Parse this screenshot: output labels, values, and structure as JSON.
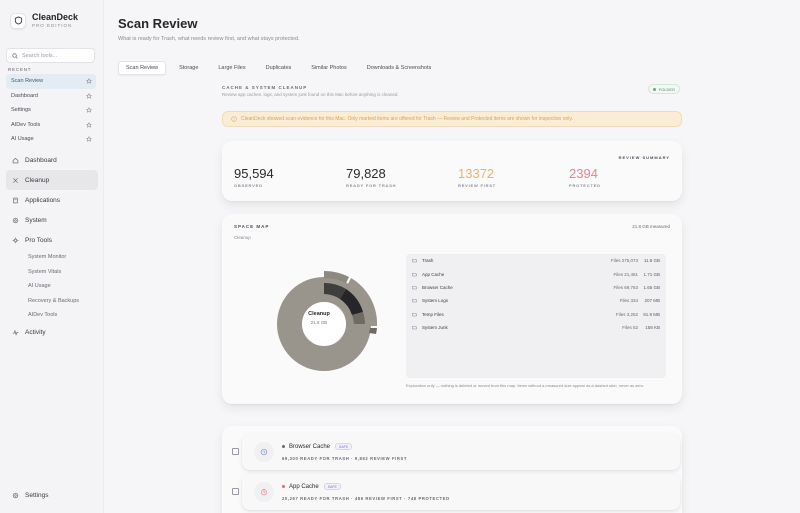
{
  "brand": {
    "name": "CleanDeck",
    "edition": "PRO EDITION"
  },
  "search": {
    "placeholder": "Search tools..."
  },
  "recent": {
    "label": "RECENT",
    "items": [
      {
        "label": "Scan Review"
      },
      {
        "label": "Dashboard"
      },
      {
        "label": "Settings"
      },
      {
        "label": "AIDev Tools"
      },
      {
        "label": "AI Usage"
      }
    ]
  },
  "nav": {
    "items": [
      {
        "label": "Dashboard",
        "icon": "home-icon"
      },
      {
        "label": "Cleanup",
        "icon": "sparkle-icon"
      },
      {
        "label": "Applications",
        "icon": "app-icon"
      },
      {
        "label": "System",
        "icon": "gear-icon"
      },
      {
        "label": "Pro Tools",
        "icon": "settings-icon"
      }
    ],
    "pro_tools": [
      "System Monitor",
      "System Vitals",
      "AI Usage",
      "Recovery & Backups",
      "AIDev Tools"
    ],
    "activity": "Activity",
    "settings": "Settings"
  },
  "page": {
    "title": "Scan Review",
    "subtitle": "What is ready for Trash, what needs review first, and what stays protected."
  },
  "tabs": [
    "Scan Review",
    "Storage",
    "Large Files",
    "Duplicates",
    "Similar Photos",
    "Downloads & Screenshots"
  ],
  "section": {
    "title": "CACHE & SYSTEM CLEANUP",
    "subtitle": "Review app caches, logs, and system junk found on this Mac before anything is cleaned.",
    "badge": "FOLDER"
  },
  "warning": {
    "text": "CleanDeck showed scan evidence for this Mac. Only marked items are offered for Trash — Review and Protected items are shown for inspection only."
  },
  "summary": {
    "label": "REVIEW SUMMARY",
    "stats": [
      {
        "value": "95,594",
        "label": "OBSERVED",
        "color": "#2a2a2e"
      },
      {
        "value": "79,828",
        "label": "READY FOR TRASH",
        "color": "#2a2a2e"
      },
      {
        "value": "13372",
        "label": "REVIEW FIRST",
        "color": "#e8b46a"
      },
      {
        "value": "2394",
        "label": "PROTECTED",
        "color": "#e8848e"
      }
    ]
  },
  "space_map": {
    "title": "SPACE MAP",
    "subtitle": "Cleanup",
    "total": "21.8 GB measured",
    "center_title": "Cleanup",
    "center_sub": "21.8 GB",
    "folders": [
      {
        "name": "Trash",
        "count": "Files 275,073",
        "size": "11.8 GB"
      },
      {
        "name": "App Cache",
        "count": "Files 21,481",
        "size": "1.71 GB"
      },
      {
        "name": "Browser Cache",
        "count": "Files 69,763",
        "size": "1.65 GB"
      },
      {
        "name": "System Logs",
        "count": "Files 334",
        "size": "207 MB"
      },
      {
        "name": "Temp Files",
        "count": "Files 3,252",
        "size": "91.9 MB"
      },
      {
        "name": "System Junk",
        "count": "Files 52",
        "size": "158 KB"
      }
    ],
    "footnote": "Exploration only — nothing is deleted or moved from this map. Items without a measured size appear as a dashed stub, never as zero."
  },
  "results": [
    {
      "title": "Browser Cache",
      "tag": "SAFE",
      "meta": "69,300 READY FOR TRASH · 9,862 REVIEW FIRST",
      "bullet": "#6a6a72",
      "icon": "clock-icon",
      "icon_color": "#7a9ac2"
    },
    {
      "title": "App Cache",
      "tag": "SAFE",
      "meta": "20,267 READY FOR TRASH · 486 REVIEW FIRST · 748 PROTECTED",
      "bullet": "#e06a78",
      "icon": "timer-icon",
      "icon_color": "#e08a96"
    }
  ]
}
